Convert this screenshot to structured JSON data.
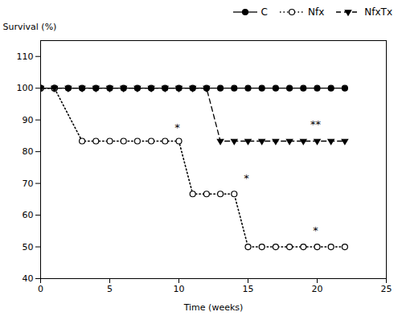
{
  "chart_data": {
    "type": "line",
    "xlabel": "Time (weeks)",
    "ylabel": "Survival (%)",
    "xlim": [
      0,
      25
    ],
    "ylim": [
      40,
      115
    ],
    "xticks": [
      0,
      5,
      10,
      15,
      20,
      25
    ],
    "yticks": [
      40,
      50,
      60,
      70,
      80,
      90,
      100,
      110
    ],
    "legend": "upper right",
    "series": [
      {
        "name": "C",
        "color": "#000000",
        "marker": "circle",
        "line_style": "solid",
        "x": [
          0,
          1,
          2,
          3,
          4,
          5,
          6,
          7,
          8,
          9,
          10,
          11,
          12,
          13,
          14,
          15,
          16,
          17,
          18,
          19,
          20,
          21,
          22
        ],
        "values": [
          100,
          100,
          100,
          100,
          100,
          100,
          100,
          100,
          100,
          100,
          100,
          100,
          100,
          100,
          100,
          100,
          100,
          100,
          100,
          100,
          100,
          100,
          100
        ]
      },
      {
        "name": "Nfx",
        "color": "#000000",
        "marker": "circle-open",
        "line_style": "dotted",
        "x": [
          0,
          1,
          3,
          4,
          5,
          6,
          7,
          8,
          9,
          10,
          11,
          12,
          13,
          14,
          15,
          16,
          17,
          18,
          19,
          20,
          21,
          22
        ],
        "values": [
          100,
          100,
          83.33,
          83.33,
          83.33,
          83.33,
          83.33,
          83.33,
          83.33,
          83.33,
          66.67,
          66.67,
          66.67,
          66.67,
          50.0,
          50.0,
          50.0,
          50.0,
          50.0,
          50.0,
          50.0,
          50.0
        ]
      },
      {
        "name": "NfxTx",
        "color": "#000000",
        "marker": "triangle-down",
        "line_style": "dashed",
        "x": [
          0,
          1,
          2,
          3,
          4,
          5,
          6,
          7,
          8,
          9,
          10,
          11,
          12,
          13,
          14,
          15,
          16,
          17,
          18,
          19,
          20,
          21,
          22
        ],
        "values": [
          100,
          100,
          100,
          100,
          100,
          100,
          100,
          100,
          100,
          100,
          100,
          100,
          100,
          83.33,
          83.33,
          83.33,
          83.33,
          83.33,
          83.33,
          83.33,
          83.33,
          83.33,
          83.33
        ]
      }
    ],
    "annotations": [
      {
        "x": 9.7,
        "y": 86.5,
        "text": "*"
      },
      {
        "x": 14.7,
        "y": 70.5,
        "text": "*"
      },
      {
        "x": 19.7,
        "y": 54.0,
        "text": "*"
      },
      {
        "x": 19.5,
        "y": 87.5,
        "text": "**"
      }
    ]
  }
}
